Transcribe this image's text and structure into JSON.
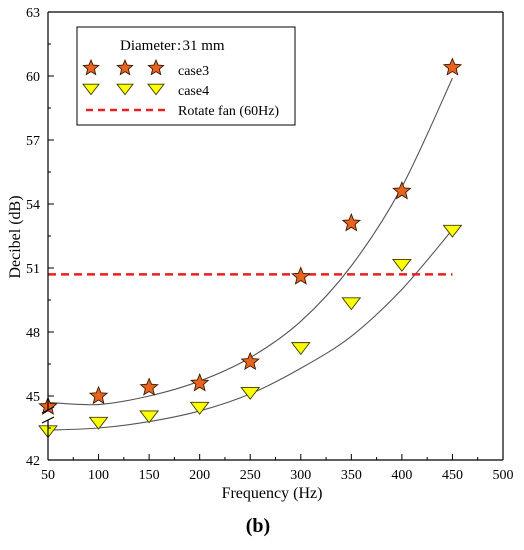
{
  "chart_data": {
    "type": "scatter",
    "xlabel": "Frequency (Hz)",
    "ylabel": "Decibel (dB)",
    "xlim": [
      50,
      500
    ],
    "ylim": [
      42,
      63
    ],
    "x_ticks": [
      "50",
      "100",
      "150",
      "200",
      "250",
      "300",
      "350",
      "400",
      "450",
      "500"
    ],
    "y_ticks": [
      "42",
      "45",
      "48",
      "51",
      "54",
      "57",
      "60",
      "63"
    ],
    "axis_break": "y-axis near 42",
    "legend": {
      "title": "Diameter : 31 mm",
      "placement": "top-left",
      "entries": [
        "case3",
        "case4",
        "Rotate fan (60Hz)"
      ]
    },
    "series": [
      {
        "name": "case3",
        "marker": "star",
        "color": "#e8641e",
        "x": [
          50,
          100,
          150,
          200,
          250,
          300,
          350,
          400,
          450
        ],
        "y": [
          44.5,
          45.0,
          45.4,
          45.6,
          46.6,
          50.6,
          53.1,
          54.6,
          60.4
        ],
        "fit_curve": {
          "x": [
            50,
            100,
            150,
            200,
            250,
            300,
            350,
            400,
            450
          ],
          "y": [
            44.7,
            44.6,
            45.0,
            45.7,
            46.8,
            48.5,
            51.1,
            54.8,
            59.9
          ]
        }
      },
      {
        "name": "case4",
        "marker": "triangle-down",
        "color": "#ffff00",
        "x": [
          50,
          100,
          150,
          200,
          250,
          300,
          350,
          400,
          450
        ],
        "y": [
          43.4,
          43.8,
          44.1,
          44.5,
          45.2,
          47.3,
          49.4,
          51.2,
          52.8
        ],
        "fit_curve": {
          "x": [
            50,
            100,
            150,
            200,
            250,
            300,
            350,
            400,
            450
          ],
          "y": [
            43.4,
            43.5,
            43.8,
            44.3,
            45.1,
            46.3,
            47.8,
            50.0,
            52.8
          ]
        }
      },
      {
        "name": "Rotate fan (60Hz)",
        "style": "dashed",
        "color": "#e82020",
        "x": [
          50,
          450
        ],
        "y": [
          50.7,
          50.7
        ]
      }
    ],
    "panel_label": "(b)"
  }
}
